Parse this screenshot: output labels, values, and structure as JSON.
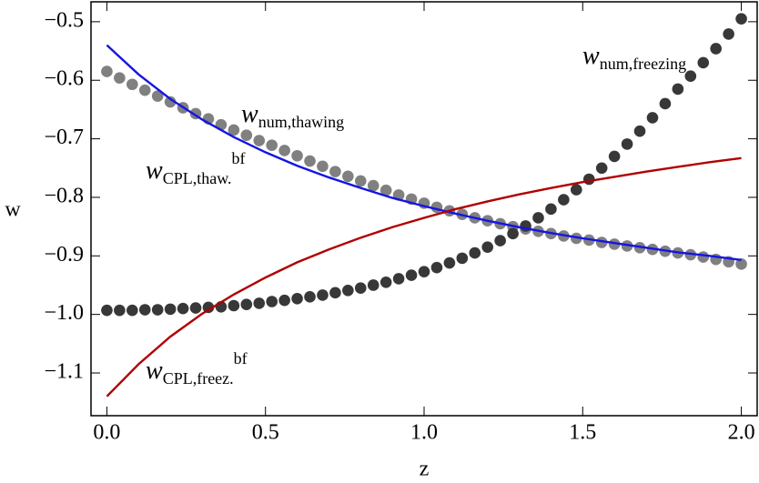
{
  "chart_data": {
    "type": "scatter-line",
    "xlabel": "z",
    "ylabel": "w",
    "xlim": [
      -0.05,
      2.05
    ],
    "ylim": [
      -1.173,
      -0.466
    ],
    "xticks": [
      {
        "value": 0,
        "label": "0.0"
      },
      0.5,
      {
        "value": 1,
        "label": "1.0"
      },
      1.5,
      {
        "value": 2,
        "label": "2.0"
      }
    ],
    "yticks": [
      {
        "value": -0.5,
        "label": "−0.5"
      },
      {
        "value": -0.6,
        "label": "−0.6"
      },
      {
        "value": -0.7,
        "label": "−0.7"
      },
      {
        "value": -0.8,
        "label": "−0.8"
      },
      {
        "value": -0.9,
        "label": "−0.9"
      },
      {
        "value": -1.0,
        "label": "−1.0"
      },
      {
        "value": -1.1,
        "label": "−1.1"
      }
    ],
    "series": [
      {
        "kind": "points",
        "color": "#808080",
        "x": [
          0,
          0.04,
          0.08,
          0.12,
          0.16,
          0.2,
          0.24,
          0.28,
          0.32,
          0.36,
          0.4,
          0.44,
          0.48,
          0.52,
          0.56,
          0.6,
          0.64,
          0.68,
          0.72,
          0.76,
          0.8,
          0.84,
          0.88,
          0.92,
          0.96,
          1,
          1.04,
          1.08,
          1.12,
          1.16,
          1.2,
          1.24,
          1.28,
          1.32,
          1.36,
          1.4,
          1.44,
          1.48,
          1.52,
          1.56,
          1.6,
          1.64,
          1.68,
          1.72,
          1.76,
          1.8,
          1.84,
          1.88,
          1.92,
          1.96,
          2
        ],
        "values": [
          -0.585,
          -0.596,
          -0.607,
          -0.617,
          -0.627,
          -0.637,
          -0.647,
          -0.657,
          -0.666,
          -0.676,
          -0.685,
          -0.694,
          -0.703,
          -0.711,
          -0.72,
          -0.729,
          -0.738,
          -0.747,
          -0.756,
          -0.764,
          -0.772,
          -0.78,
          -0.788,
          -0.796,
          -0.803,
          -0.81,
          -0.817,
          -0.823,
          -0.829,
          -0.835,
          -0.84,
          -0.845,
          -0.85,
          -0.854,
          -0.858,
          -0.862,
          -0.866,
          -0.87,
          -0.873,
          -0.877,
          -0.88,
          -0.883,
          -0.886,
          -0.889,
          -0.892,
          -0.895,
          -0.898,
          -0.902,
          -0.906,
          -0.91,
          -0.914
        ]
      },
      {
        "kind": "points",
        "color": "#383838",
        "x": [
          0,
          0.04,
          0.08,
          0.12,
          0.16,
          0.2,
          0.24,
          0.28,
          0.32,
          0.36,
          0.4,
          0.44,
          0.48,
          0.52,
          0.56,
          0.6,
          0.64,
          0.68,
          0.72,
          0.76,
          0.8,
          0.84,
          0.88,
          0.92,
          0.96,
          1,
          1.04,
          1.08,
          1.12,
          1.16,
          1.2,
          1.24,
          1.28,
          1.32,
          1.36,
          1.4,
          1.44,
          1.48,
          1.52,
          1.56,
          1.6,
          1.64,
          1.68,
          1.72,
          1.76,
          1.8,
          1.84,
          1.88,
          1.92,
          1.96,
          2
        ],
        "values": [
          -0.993,
          -0.993,
          -0.993,
          -0.992,
          -0.992,
          -0.991,
          -0.99,
          -0.989,
          -0.988,
          -0.987,
          -0.985,
          -0.983,
          -0.981,
          -0.978,
          -0.976,
          -0.973,
          -0.97,
          -0.967,
          -0.963,
          -0.959,
          -0.955,
          -0.95,
          -0.945,
          -0.939,
          -0.933,
          -0.927,
          -0.92,
          -0.912,
          -0.904,
          -0.895,
          -0.885,
          -0.874,
          -0.862,
          -0.849,
          -0.835,
          -0.82,
          -0.804,
          -0.787,
          -0.769,
          -0.75,
          -0.73,
          -0.709,
          -0.687,
          -0.664,
          -0.64,
          -0.615,
          -0.593,
          -0.57,
          -0.546,
          -0.521,
          -0.495
        ]
      },
      {
        "kind": "line",
        "color": "#1414e6",
        "x": [
          0,
          0.1,
          0.2,
          0.3,
          0.4,
          0.5,
          0.6,
          0.7,
          0.8,
          0.9,
          1,
          1.1,
          1.2,
          1.3,
          1.4,
          1.5,
          1.6,
          1.7,
          1.8,
          1.9,
          2
        ],
        "values": [
          -0.54,
          -0.59,
          -0.632,
          -0.667,
          -0.697,
          -0.723,
          -0.746,
          -0.766,
          -0.784,
          -0.801,
          -0.815,
          -0.828,
          -0.84,
          -0.851,
          -0.861,
          -0.87,
          -0.878,
          -0.886,
          -0.894,
          -0.9,
          -0.907
        ]
      },
      {
        "kind": "line",
        "color": "#b00000",
        "x": [
          0,
          0.1,
          0.2,
          0.3,
          0.4,
          0.5,
          0.6,
          0.7,
          0.8,
          0.9,
          1,
          1.1,
          1.2,
          1.3,
          1.4,
          1.5,
          1.6,
          1.7,
          1.8,
          1.9,
          2
        ],
        "values": [
          -1.14,
          -1.085,
          -1.038,
          -0.999,
          -0.966,
          -0.937,
          -0.911,
          -0.889,
          -0.869,
          -0.851,
          -0.835,
          -0.82,
          -0.807,
          -0.795,
          -0.784,
          -0.774,
          -0.765,
          -0.756,
          -0.748,
          -0.74,
          -0.733
        ]
      }
    ],
    "annotations": [
      {
        "text": "w",
        "sub": "num,thawing"
      },
      {
        "text": "w",
        "sub": "CPL,thaw.",
        "sup": "bf"
      },
      {
        "text": "w",
        "sub": "CPL,freez.",
        "sup": "bf"
      },
      {
        "text": "w",
        "sub": "num,freezing"
      }
    ]
  }
}
